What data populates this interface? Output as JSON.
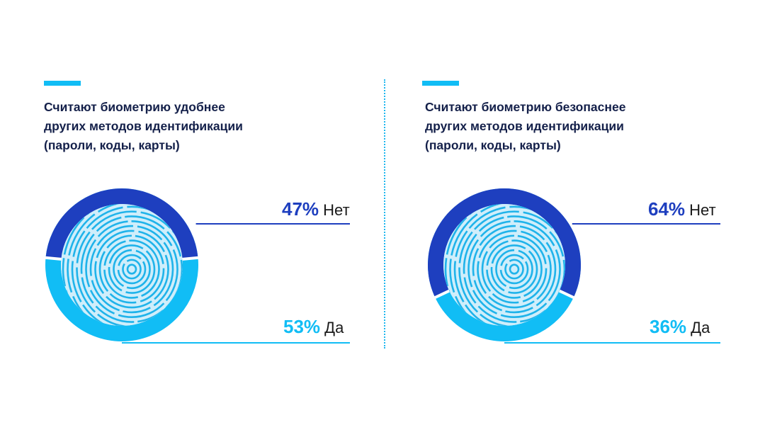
{
  "colors": {
    "dark_blue": "#1e3fbf",
    "light_blue": "#11bdf5",
    "title_text": "#14204a",
    "fingerprint_fill": "#cfeefb",
    "fingerprint_stroke": "#1fb3ea"
  },
  "chart_data": [
    {
      "type": "pie",
      "title_lines": [
        "Считают биометрию удобнее",
        "других методов идентификации",
        "(пароли, коды, карты)"
      ],
      "slices": [
        {
          "label": "Нет",
          "value": 47,
          "value_text": "47%",
          "color": "#1e3fbf"
        },
        {
          "label": "Да",
          "value": 53,
          "value_text": "53%",
          "color": "#11bdf5"
        }
      ]
    },
    {
      "type": "pie",
      "title_lines": [
        "Считают биометрию безопаснее",
        "других методов идентификации",
        "(пароли, коды, карты)"
      ],
      "slices": [
        {
          "label": "Нет",
          "value": 64,
          "value_text": "64%",
          "color": "#1e3fbf"
        },
        {
          "label": "Да",
          "value": 36,
          "value_text": "36%",
          "color": "#11bdf5"
        }
      ]
    }
  ]
}
